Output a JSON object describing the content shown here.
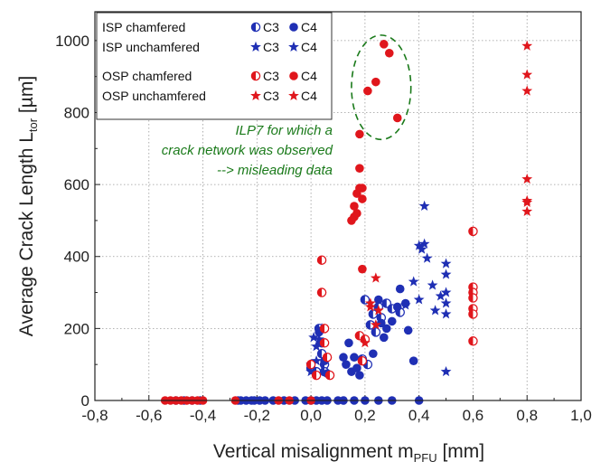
{
  "chart_data": {
    "type": "scatter",
    "xlabel": "Vertical misalignment m",
    "xlabel_sub": "PFU",
    "xlabel_unit": " [mm]",
    "ylabel": "Average Crack Length L",
    "ylabel_sub": "tor",
    "ylabel_unit": " [µm]",
    "xlim": [
      -0.8,
      1.0
    ],
    "ylim": [
      0,
      1080
    ],
    "x_ticks": [
      -0.8,
      -0.6,
      -0.4,
      -0.2,
      0.0,
      0.2,
      0.4,
      0.6,
      0.8,
      1.0
    ],
    "x_tick_labels": [
      "-0,8",
      "-0,6",
      "-0,4",
      "-0,2",
      "0,0",
      "0,2",
      "0,4",
      "0,6",
      "0,8",
      "1,0"
    ],
    "y_ticks": [
      0,
      200,
      400,
      600,
      800,
      1000
    ],
    "y_tick_labels": [
      "0",
      "200",
      "400",
      "600",
      "800",
      "1000"
    ],
    "grid": true,
    "legend_position": "top-left",
    "colors": {
      "isp": "#1f2fb4",
      "osp": "#e0161c",
      "annotation": "#1a7a1a"
    },
    "legend": [
      {
        "label": "ISP chamfered",
        "c3_marker": "half-circle",
        "c4_marker": "circle",
        "color": "#1f2fb4",
        "c3": "C3",
        "c4": "C4"
      },
      {
        "label": "ISP unchamfered",
        "c3_marker": "star",
        "c4_marker": "star",
        "color": "#1f2fb4",
        "c3": "C3",
        "c4": "C4"
      },
      {
        "label": "OSP chamfered",
        "c3_marker": "half-circle",
        "c4_marker": "circle",
        "color": "#e0161c",
        "c3": "C3",
        "c4": "C4"
      },
      {
        "label": "OSP unchamfered",
        "c3_marker": "star",
        "c4_marker": "star",
        "color": "#e0161c",
        "c3": "C3",
        "c4": "C4"
      }
    ],
    "annotation": {
      "lines": [
        "ILP7 for which a",
        "crack network was observed",
        "--> misleading data"
      ],
      "ellipse_center": [
        0.26,
        870
      ],
      "ellipse_radius": [
        0.11,
        145
      ]
    },
    "series": [
      {
        "name": "ISP chamfered C3",
        "color": "#1f2fb4",
        "marker": "half-circle",
        "points": [
          [
            0.0,
            90
          ],
          [
            0.02,
            80
          ],
          [
            0.03,
            200
          ],
          [
            0.04,
            160
          ],
          [
            0.04,
            130
          ],
          [
            0.05,
            100
          ],
          [
            0.05,
            80
          ],
          [
            0.19,
            115
          ],
          [
            0.2,
            280
          ],
          [
            0.21,
            100
          ],
          [
            0.22,
            210
          ],
          [
            0.23,
            240
          ],
          [
            0.24,
            190
          ],
          [
            0.25,
            260
          ],
          [
            0.26,
            230
          ],
          [
            0.28,
            270
          ],
          [
            0.3,
            255
          ],
          [
            0.33,
            245
          ]
        ]
      },
      {
        "name": "ISP chamfered C4",
        "color": "#1f2fb4",
        "marker": "circle",
        "points": [
          [
            -0.5,
            0
          ],
          [
            -0.47,
            0
          ],
          [
            -0.44,
            0
          ],
          [
            -0.41,
            0
          ],
          [
            -0.27,
            0
          ],
          [
            -0.26,
            0
          ],
          [
            -0.24,
            0
          ],
          [
            -0.22,
            0
          ],
          [
            -0.21,
            0
          ],
          [
            -0.19,
            0
          ],
          [
            -0.17,
            0
          ],
          [
            -0.14,
            0
          ],
          [
            -0.1,
            0
          ],
          [
            -0.06,
            0
          ],
          [
            -0.02,
            0
          ],
          [
            0.0,
            0
          ],
          [
            0.02,
            0
          ],
          [
            0.04,
            0
          ],
          [
            0.06,
            0
          ],
          [
            0.1,
            0
          ],
          [
            0.12,
            0
          ],
          [
            0.16,
            0
          ],
          [
            0.2,
            0
          ],
          [
            0.25,
            0
          ],
          [
            0.3,
            0
          ],
          [
            0.4,
            0
          ],
          [
            0.03,
            190
          ],
          [
            0.05,
            110
          ],
          [
            0.06,
            75
          ],
          [
            0.12,
            120
          ],
          [
            0.13,
            100
          ],
          [
            0.14,
            160
          ],
          [
            0.15,
            80
          ],
          [
            0.16,
            120
          ],
          [
            0.17,
            90
          ],
          [
            0.18,
            70
          ],
          [
            0.2,
            170
          ],
          [
            0.23,
            130
          ],
          [
            0.25,
            280
          ],
          [
            0.26,
            215
          ],
          [
            0.27,
            175
          ],
          [
            0.28,
            200
          ],
          [
            0.3,
            220
          ],
          [
            0.32,
            260
          ],
          [
            0.33,
            310
          ],
          [
            0.35,
            270
          ],
          [
            0.36,
            195
          ],
          [
            0.38,
            110
          ]
        ]
      },
      {
        "name": "ISP unchamfered C3",
        "color": "#1f2fb4",
        "marker": "star",
        "points": [
          [
            0.0,
            80
          ],
          [
            0.02,
            110
          ],
          [
            0.4,
            430
          ],
          [
            0.41,
            420
          ],
          [
            0.45,
            320
          ],
          [
            0.46,
            250
          ],
          [
            0.48,
            290
          ],
          [
            0.5,
            380
          ],
          [
            0.5,
            350
          ],
          [
            0.5,
            300
          ],
          [
            0.5,
            270
          ],
          [
            0.5,
            240
          ]
        ]
      },
      {
        "name": "ISP unchamfered C4",
        "color": "#1f2fb4",
        "marker": "star",
        "points": [
          [
            0.0,
            100
          ],
          [
            0.01,
            175
          ],
          [
            0.02,
            150
          ],
          [
            0.03,
            170
          ],
          [
            0.04,
            200
          ],
          [
            0.35,
            265
          ],
          [
            0.38,
            330
          ],
          [
            0.4,
            280
          ],
          [
            0.42,
            540
          ],
          [
            0.42,
            435
          ],
          [
            0.43,
            395
          ],
          [
            0.5,
            80
          ]
        ]
      },
      {
        "name": "OSP chamfered C3",
        "color": "#e0161c",
        "marker": "half-circle",
        "points": [
          [
            0.0,
            100
          ],
          [
            0.02,
            70
          ],
          [
            0.04,
            390
          ],
          [
            0.04,
            300
          ],
          [
            0.05,
            200
          ],
          [
            0.05,
            160
          ],
          [
            0.06,
            120
          ],
          [
            0.07,
            70
          ],
          [
            0.18,
            180
          ],
          [
            0.2,
            170
          ],
          [
            0.19,
            110
          ],
          [
            0.6,
            470
          ],
          [
            0.6,
            315
          ],
          [
            0.6,
            300
          ],
          [
            0.6,
            285
          ],
          [
            0.6,
            255
          ],
          [
            0.6,
            240
          ],
          [
            0.6,
            165
          ]
        ]
      },
      {
        "name": "OSP chamfered C4",
        "color": "#e0161c",
        "marker": "circle",
        "points": [
          [
            -0.54,
            0
          ],
          [
            -0.52,
            0
          ],
          [
            -0.5,
            0
          ],
          [
            -0.48,
            0
          ],
          [
            -0.46,
            0
          ],
          [
            -0.44,
            0
          ],
          [
            -0.42,
            0
          ],
          [
            -0.4,
            0
          ],
          [
            -0.28,
            0
          ],
          [
            -0.12,
            0
          ],
          [
            -0.08,
            0
          ],
          [
            0.0,
            0
          ],
          [
            0.15,
            500
          ],
          [
            0.16,
            540
          ],
          [
            0.16,
            510
          ],
          [
            0.17,
            575
          ],
          [
            0.17,
            520
          ],
          [
            0.18,
            590
          ],
          [
            0.18,
            645
          ],
          [
            0.19,
            590
          ],
          [
            0.19,
            560
          ],
          [
            0.18,
            740
          ],
          [
            0.19,
            365
          ],
          [
            0.21,
            860
          ],
          [
            0.24,
            885
          ],
          [
            0.27,
            990
          ],
          [
            0.29,
            965
          ],
          [
            0.32,
            785
          ]
        ]
      },
      {
        "name": "OSP unchamfered C3",
        "color": "#e0161c",
        "marker": "star",
        "points": [
          [
            0.22,
            260
          ],
          [
            0.24,
            340
          ],
          [
            0.25,
            250
          ],
          [
            0.8,
            985
          ],
          [
            0.8,
            905
          ],
          [
            0.8,
            860
          ],
          [
            0.8,
            615
          ],
          [
            0.8,
            555
          ],
          [
            0.8,
            525
          ]
        ]
      },
      {
        "name": "OSP unchamfered C4",
        "color": "#e0161c",
        "marker": "star",
        "points": [
          [
            0.2,
            160
          ],
          [
            0.22,
            270
          ],
          [
            0.24,
            210
          ],
          [
            0.8,
            550
          ]
        ]
      }
    ]
  }
}
